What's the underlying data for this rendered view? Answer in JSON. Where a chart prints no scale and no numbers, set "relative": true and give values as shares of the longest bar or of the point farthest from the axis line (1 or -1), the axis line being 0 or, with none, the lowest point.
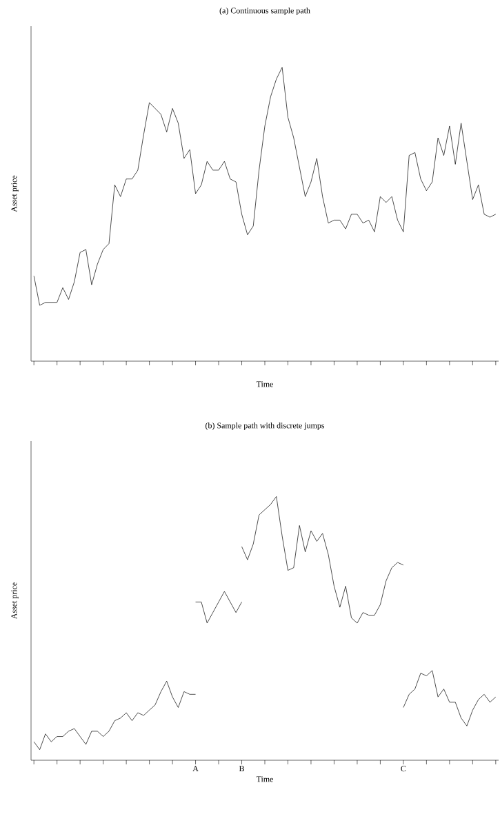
{
  "chart_data": [
    {
      "type": "line",
      "title": "(a) Continuous sample path",
      "xlabel": "Time",
      "ylabel": "Asset price",
      "relative": true,
      "tick_labels": false,
      "categories": [
        null,
        null,
        null,
        null,
        null,
        null,
        null,
        null,
        null,
        null,
        null,
        null,
        null,
        null,
        null,
        null,
        null,
        null,
        null,
        null,
        null,
        null,
        null,
        null,
        null,
        null,
        null,
        null,
        null,
        null,
        null,
        null,
        null,
        null,
        null,
        null,
        null,
        null,
        null,
        null,
        null,
        null,
        null,
        null,
        null,
        null,
        null,
        null,
        null,
        null,
        null,
        null,
        null,
        null,
        null,
        null,
        null,
        null,
        null,
        null,
        null,
        null,
        null,
        null,
        null,
        null,
        null,
        null,
        null,
        null,
        null,
        null,
        null,
        null,
        null,
        null,
        null,
        null,
        null,
        null,
        null
      ],
      "series": [
        {
          "color": "#000000",
          "values": [
            0.29,
            0.19,
            0.2,
            0.2,
            0.2,
            0.25,
            0.21,
            0.27,
            0.37,
            0.38,
            0.26,
            0.33,
            0.38,
            0.4,
            0.6,
            0.56,
            0.62,
            0.62,
            0.65,
            0.77,
            0.88,
            0.86,
            0.84,
            0.78,
            0.86,
            0.81,
            0.69,
            0.72,
            0.57,
            0.6,
            0.68,
            0.65,
            0.65,
            0.68,
            0.62,
            0.61,
            0.5,
            0.43,
            0.46,
            0.65,
            0.8,
            0.9,
            0.96,
            1.0,
            0.83,
            0.76,
            0.66,
            0.56,
            0.61,
            0.69,
            0.56,
            0.47,
            0.48,
            0.48,
            0.45,
            0.5,
            0.5,
            0.47,
            0.48,
            0.44,
            0.56,
            0.54,
            0.56,
            0.48,
            0.44,
            0.7,
            0.71,
            0.62,
            0.58,
            0.61,
            0.76,
            0.7,
            0.8,
            0.67,
            0.81,
            0.68,
            0.55,
            0.6,
            0.5,
            0.49,
            0.5
          ]
        }
      ]
    },
    {
      "type": "line",
      "title": "(b) Sample path with discrete jumps",
      "xlabel": "Time",
      "ylabel": "Asset price",
      "relative": true,
      "tick_labels": "x",
      "categories": [
        null,
        null,
        null,
        null,
        null,
        null,
        null,
        null,
        null,
        null,
        null,
        null,
        null,
        null,
        null,
        null,
        null,
        null,
        null,
        null,
        null,
        null,
        null,
        null,
        null,
        null,
        null,
        null,
        "A",
        null,
        null,
        null,
        null,
        null,
        null,
        null,
        "B",
        null,
        null,
        null,
        null,
        null,
        null,
        null,
        null,
        null,
        null,
        null,
        null,
        null,
        null,
        null,
        null,
        null,
        null,
        null,
        null,
        null,
        null,
        null,
        null,
        null,
        null,
        null,
        "C",
        null,
        null,
        null,
        null,
        null,
        null,
        null,
        null,
        null,
        null,
        null,
        null,
        null,
        null,
        null,
        null
      ],
      "series": [
        {
          "color": "#000000",
          "values": [
            0.07,
            0.04,
            0.1,
            0.07,
            0.09,
            0.09,
            0.11,
            0.12,
            0.09,
            0.06,
            0.11,
            0.11,
            0.09,
            0.11,
            0.15,
            0.16,
            0.18,
            0.15,
            0.18,
            0.17,
            0.19,
            0.21,
            0.26,
            0.3,
            0.24,
            0.2,
            0.26,
            0.25,
            0.25,
            null,
            null,
            null,
            null,
            null,
            null,
            null,
            null,
            null,
            null,
            null,
            null,
            null,
            null,
            null,
            null,
            null,
            null,
            null,
            null,
            null,
            null,
            null,
            null,
            null,
            null,
            null,
            null,
            null,
            null,
            null,
            null,
            null,
            null,
            null,
            null,
            null,
            null,
            null,
            null,
            null,
            null,
            null,
            null,
            null,
            null,
            null,
            null,
            null,
            null,
            null,
            null
          ]
        },
        {
          "color": "#000000",
          "values": [
            null,
            null,
            null,
            null,
            null,
            null,
            null,
            null,
            null,
            null,
            null,
            null,
            null,
            null,
            null,
            null,
            null,
            null,
            null,
            null,
            null,
            null,
            null,
            null,
            null,
            null,
            null,
            null,
            0.6,
            0.6,
            0.52,
            0.56,
            0.6,
            0.64,
            0.6,
            0.56,
            0.6,
            null,
            null,
            null,
            null,
            null,
            null,
            null,
            null,
            null,
            null,
            null,
            null,
            null,
            null,
            null,
            null,
            null,
            null,
            null,
            null,
            null,
            null,
            null,
            null,
            null,
            null,
            null,
            null,
            null,
            null,
            null,
            null,
            null,
            null,
            null,
            null,
            null,
            null,
            null,
            null,
            null,
            null,
            null,
            null
          ]
        },
        {
          "color": "#000000",
          "values": [
            null,
            null,
            null,
            null,
            null,
            null,
            null,
            null,
            null,
            null,
            null,
            null,
            null,
            null,
            null,
            null,
            null,
            null,
            null,
            null,
            null,
            null,
            null,
            null,
            null,
            null,
            null,
            null,
            null,
            null,
            null,
            null,
            null,
            null,
            null,
            null,
            0.81,
            0.76,
            0.82,
            0.93,
            0.95,
            0.97,
            1.0,
            0.85,
            0.72,
            0.73,
            0.89,
            0.79,
            0.87,
            0.83,
            0.86,
            0.78,
            0.66,
            0.58,
            0.66,
            0.54,
            0.52,
            0.56,
            0.55,
            0.55,
            0.59,
            0.68,
            0.73,
            0.75,
            0.74,
            null,
            null,
            null,
            null,
            null,
            null,
            null,
            null,
            null,
            null,
            null,
            null,
            null,
            null,
            null,
            null
          ]
        },
        {
          "color": "#000000",
          "values": [
            null,
            null,
            null,
            null,
            null,
            null,
            null,
            null,
            null,
            null,
            null,
            null,
            null,
            null,
            null,
            null,
            null,
            null,
            null,
            null,
            null,
            null,
            null,
            null,
            null,
            null,
            null,
            null,
            null,
            null,
            null,
            null,
            null,
            null,
            null,
            null,
            null,
            null,
            null,
            null,
            null,
            null,
            null,
            null,
            null,
            null,
            null,
            null,
            null,
            null,
            null,
            null,
            null,
            null,
            null,
            null,
            null,
            null,
            null,
            null,
            null,
            null,
            null,
            null,
            0.2,
            0.25,
            0.27,
            0.33,
            0.32,
            0.34,
            0.24,
            0.27,
            0.22,
            0.22,
            0.16,
            0.13,
            0.19,
            0.23,
            0.25,
            0.22,
            0.24
          ]
        }
      ]
    }
  ]
}
